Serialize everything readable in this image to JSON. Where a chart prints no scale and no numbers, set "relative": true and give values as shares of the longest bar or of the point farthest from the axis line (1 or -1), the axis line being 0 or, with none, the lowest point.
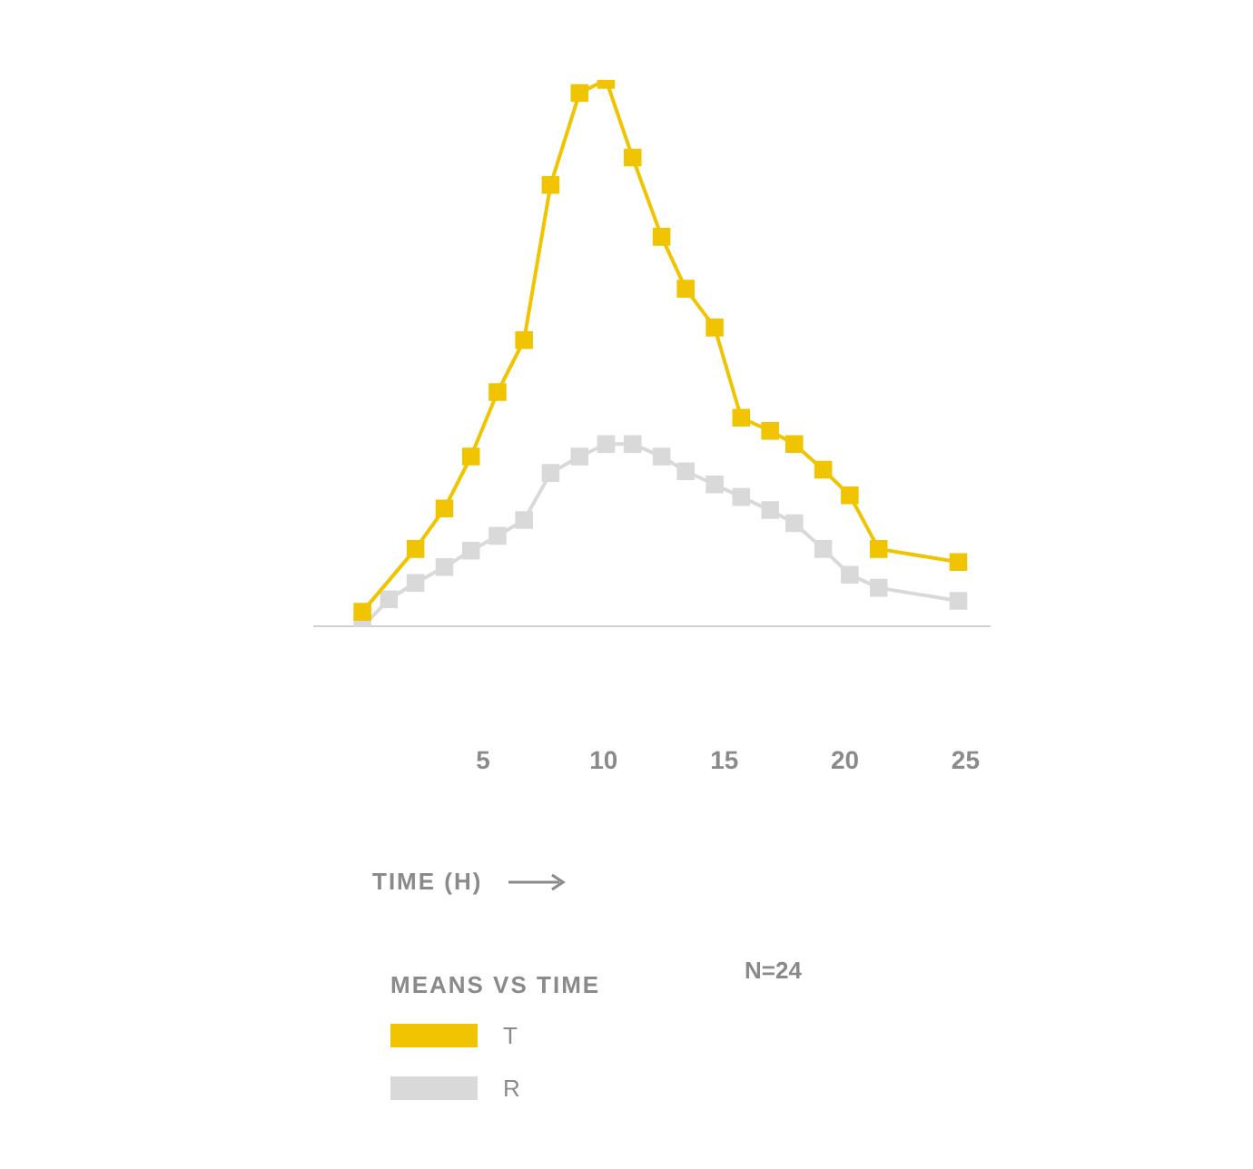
{
  "chart_data": {
    "type": "line",
    "relative": true,
    "xlabel": "TIME (H)",
    "legend_title": "MEANS VS TIME",
    "legend": "bottom left",
    "marker": "square",
    "line_style": "solid",
    "grid": false,
    "xlim": [
      -2,
      26
    ],
    "xticks": [
      5,
      10,
      15,
      20,
      25
    ],
    "annotations": [
      "N=24"
    ],
    "series": [
      {
        "name": "T",
        "color": "#f0c400",
        "x": [
          0,
          2.2,
          3.4,
          4.5,
          5.6,
          6.7,
          7.8,
          9.0,
          10.1,
          11.2,
          12.4,
          13.4,
          14.6,
          15.7,
          16.9,
          17.9,
          19.1,
          20.2,
          21.4,
          24.7
        ],
        "values": [
          0.027,
          0.142,
          0.216,
          0.311,
          0.429,
          0.524,
          0.808,
          0.976,
          1,
          0.858,
          0.713,
          0.618,
          0.547,
          0.382,
          0.358,
          0.334,
          0.287,
          0.24,
          0.142,
          0.118
        ]
      },
      {
        "name": "R",
        "color": "#d9d9d9",
        "x": [
          0,
          1.1,
          2.2,
          3.4,
          4.5,
          5.6,
          6.7,
          7.8,
          9.0,
          10.1,
          11.2,
          12.4,
          13.4,
          14.6,
          15.7,
          16.9,
          17.9,
          19.1,
          20.2,
          21.4,
          24.7
        ],
        "values": [
          0,
          0.05,
          0.08,
          0.109,
          0.139,
          0.166,
          0.195,
          0.281,
          0.311,
          0.334,
          0.334,
          0.311,
          0.284,
          0.26,
          0.237,
          0.213,
          0.189,
          0.142,
          0.095,
          0.071,
          0.047
        ]
      }
    ]
  }
}
